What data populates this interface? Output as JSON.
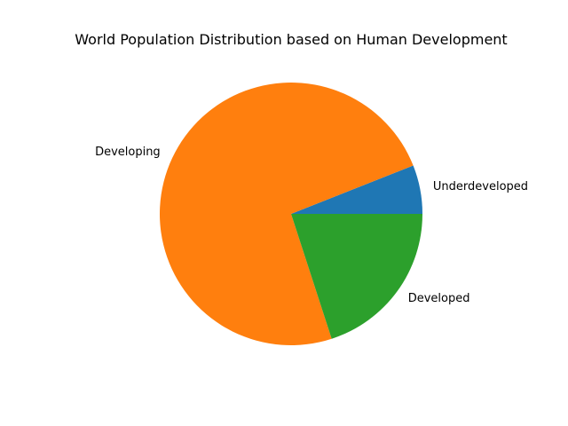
{
  "chart_data": {
    "type": "pie",
    "title": "World Population Distribution based on Human Development",
    "categories": [
      "Underdeveloped",
      "Developing",
      "Developed"
    ],
    "values": [
      6,
      74,
      20
    ],
    "colors": [
      "#1f77b4",
      "#ff7f0e",
      "#2ca02c"
    ],
    "start_angle_deg": 0,
    "direction": "counterclockwise",
    "legend": "none"
  }
}
